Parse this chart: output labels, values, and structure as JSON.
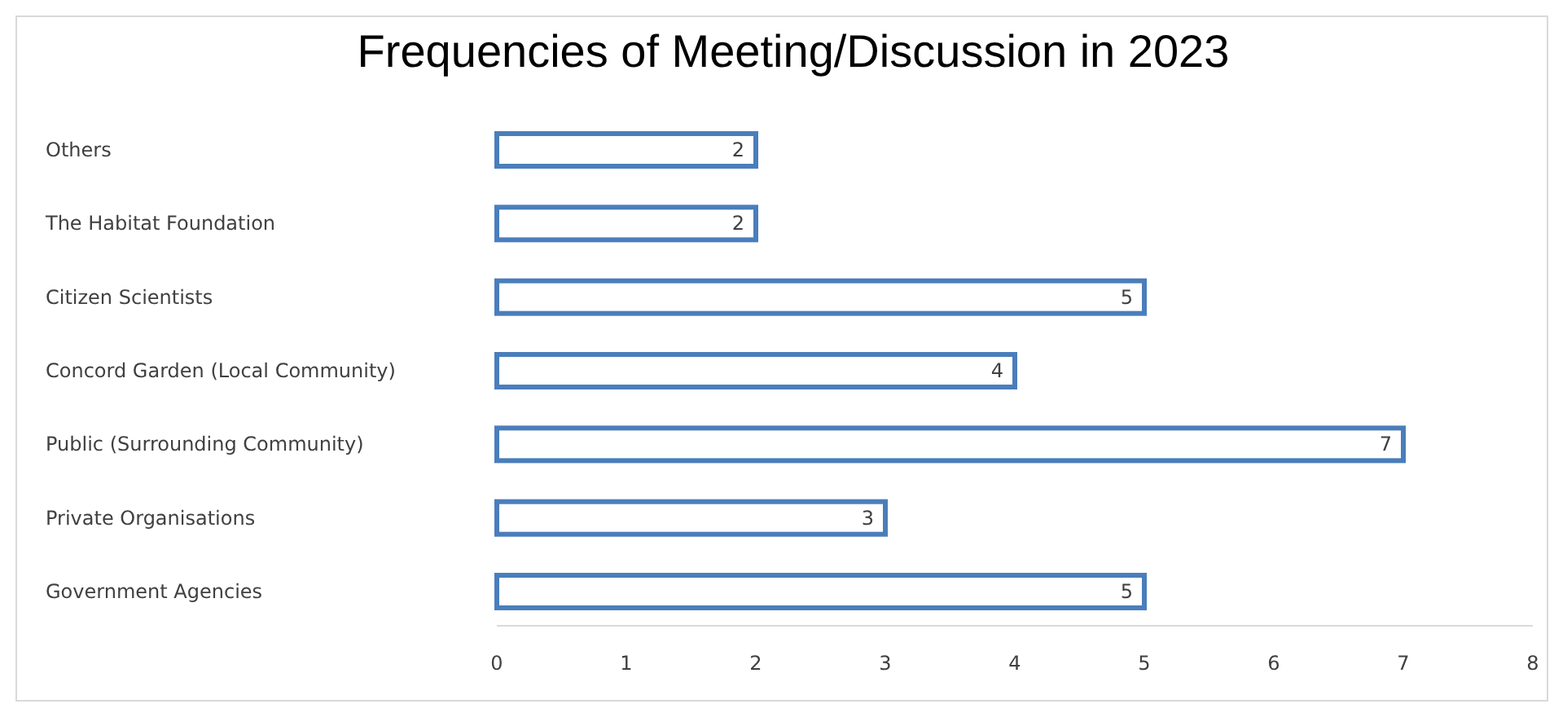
{
  "chart_data": {
    "type": "bar",
    "orientation": "horizontal",
    "title": "Frequencies of Meeting/Discussion in 2023",
    "categories": [
      "Others",
      "The Habitat Foundation",
      "Citizen Scientists",
      "Concord Garden (Local Community)",
      "Public (Surrounding Community)",
      "Private Organisations",
      "Government Agencies"
    ],
    "values": [
      2,
      2,
      5,
      4,
      7,
      3,
      5
    ],
    "color": "#4a7ebb",
    "xlim": [
      0,
      8
    ],
    "xticks": [
      0,
      1,
      2,
      3,
      4,
      5,
      6,
      7,
      8
    ],
    "data_labels": true,
    "grid": false
  }
}
